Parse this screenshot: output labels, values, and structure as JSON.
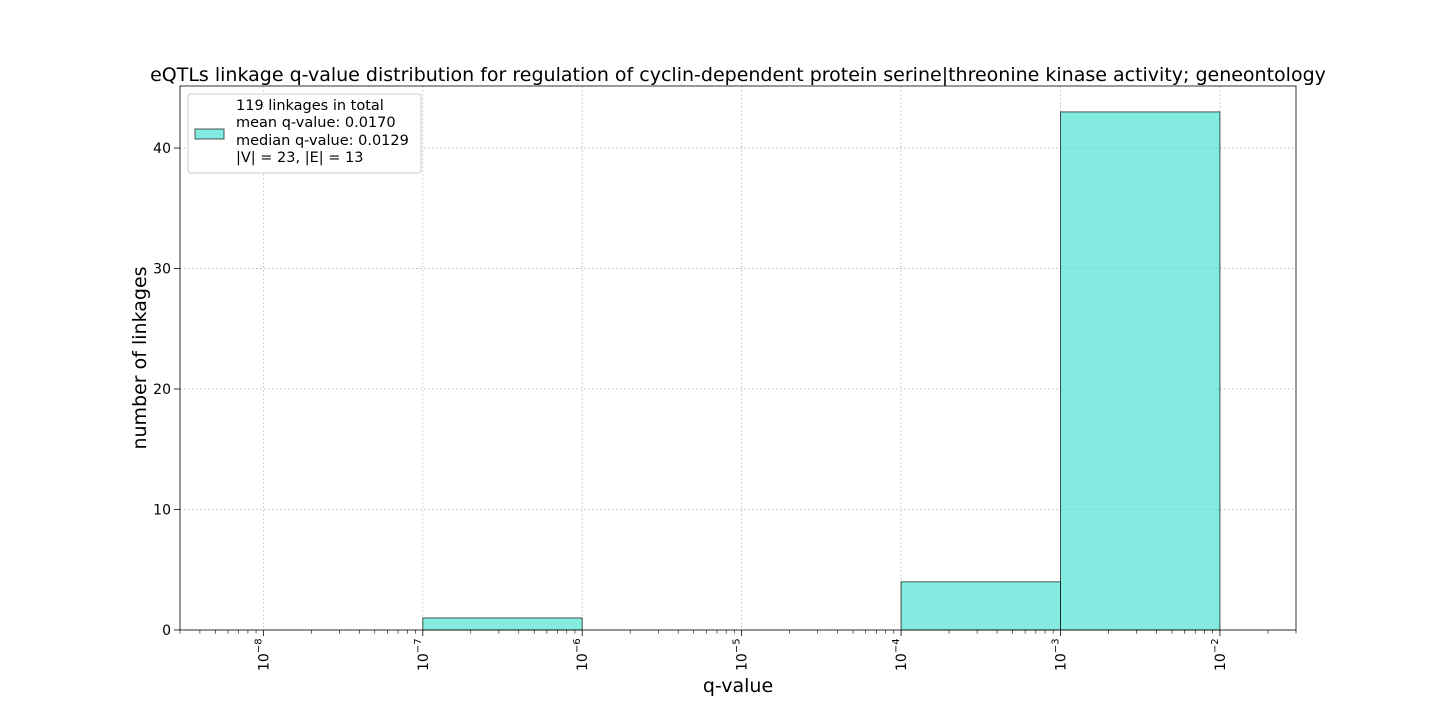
{
  "chart_data": {
    "type": "bar",
    "title": "eQTLs linkage q-value distribution for regulation of cyclin-dependent protein serine|threonine kinase activity; geneontology",
    "xlabel": "q-value",
    "ylabel": "number of linkages",
    "x_scale": "log",
    "xlim": [
      3e-09,
      0.03
    ],
    "ylim": [
      0,
      45.15
    ],
    "grid": true,
    "x_ticks": [
      {
        "value": 1e-08,
        "base": "10",
        "exp": "−8"
      },
      {
        "value": 1e-07,
        "base": "10",
        "exp": "−7"
      },
      {
        "value": 1e-06,
        "base": "10",
        "exp": "−6"
      },
      {
        "value": 1e-05,
        "base": "10",
        "exp": "−5"
      },
      {
        "value": 0.0001,
        "base": "10",
        "exp": "−4"
      },
      {
        "value": 0.001,
        "base": "10",
        "exp": "−3"
      },
      {
        "value": 0.01,
        "base": "10",
        "exp": "−2"
      }
    ],
    "y_ticks": [
      0,
      10,
      20,
      30,
      40
    ],
    "bins": [
      {
        "from": 1e-08,
        "to": 1e-07,
        "count": 0
      },
      {
        "from": 1e-07,
        "to": 1e-06,
        "count": 1
      },
      {
        "from": 1e-06,
        "to": 1e-05,
        "count": 0
      },
      {
        "from": 1e-05,
        "to": 0.0001,
        "count": 0
      },
      {
        "from": 0.0001,
        "to": 0.001,
        "count": 4
      },
      {
        "from": 0.001,
        "to": 0.01,
        "count": 43
      }
    ],
    "bar_color": "#40E0D0",
    "bar_edge_color": "#000000",
    "legend": {
      "placement": "top-left",
      "lines": [
        "119 linkages in total",
        "mean q-value: 0.0170",
        "median q-value: 0.0129",
        "|V| = 23, |E| = 13"
      ]
    }
  }
}
